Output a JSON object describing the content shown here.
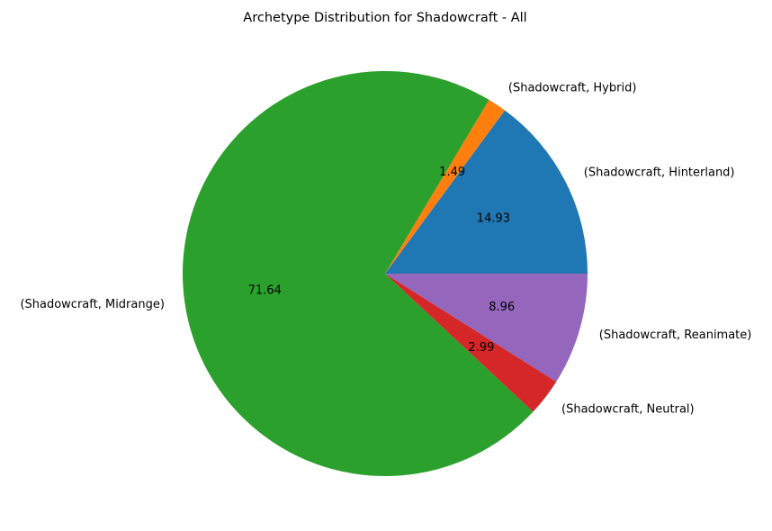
{
  "chart_data": {
    "type": "pie",
    "title": "Archetype Distribution for Shadowcraft - All",
    "categories": [
      "(Shadowcraft, Hinterland)",
      "(Shadowcraft, Hybrid)",
      "(Shadowcraft, Midrange)",
      "(Shadowcraft, Neutral)",
      "(Shadowcraft, Reanimate)"
    ],
    "values": [
      14.93,
      1.49,
      71.64,
      2.99,
      8.96
    ],
    "value_labels": [
      "14.93",
      "1.49",
      "71.64",
      "2.99",
      "8.96"
    ],
    "colors": [
      "#1f77b4",
      "#ff7f0e",
      "#2ca02c",
      "#d62728",
      "#9467bd"
    ],
    "start_angle_deg": 0,
    "direction": "counterclockwise",
    "legend": "none"
  }
}
